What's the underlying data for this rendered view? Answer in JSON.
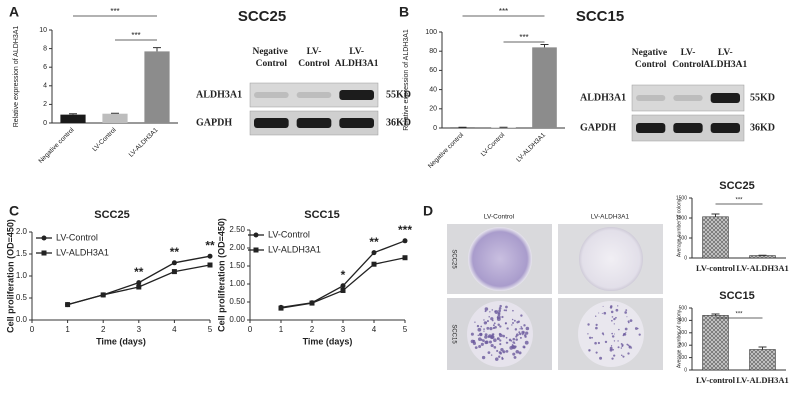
{
  "chart_data": [
    {
      "type": "bar",
      "panel_label": "A",
      "title": "SCC25",
      "y_label": "Relative expression of ALDH3A1",
      "categories": [
        "Negative control",
        "LV-Control",
        "LV-ALDH3A1"
      ],
      "values": [
        0.9,
        1.0,
        7.7
      ],
      "errors": [
        0.1,
        0.05,
        0.4
      ],
      "colors": [
        "#1a1a1a",
        "#bdbdbd",
        "#8c8c8c"
      ],
      "ylim": [
        0,
        10
      ],
      "yticks": [
        0,
        2,
        4,
        6,
        8,
        10
      ],
      "annotations": [
        "***",
        "***"
      ],
      "blot": {
        "columns": [
          "Negative Control",
          "LV-Control",
          "LV-ALDH3A1"
        ],
        "rows": [
          "ALDH3A1",
          "GAPDH"
        ],
        "sizes": [
          "55KD",
          "36KD"
        ]
      }
    },
    {
      "type": "bar",
      "panel_label": "B",
      "title": "SCC15",
      "y_label": "Relative expression of ALDH3A1",
      "categories": [
        "Negative control",
        "LV-Control",
        "LV-ALDH3A1"
      ],
      "values": [
        0.5,
        0.5,
        84
      ],
      "errors": [
        0.3,
        0.3,
        3
      ],
      "colors": [
        "#1a1a1a",
        "#bdbdbd",
        "#8c8c8c"
      ],
      "ylim": [
        0,
        100
      ],
      "yticks": [
        0,
        20,
        40,
        60,
        80,
        100
      ],
      "annotations": [
        "***",
        "***"
      ],
      "blot": {
        "columns": [
          "Negative Control",
          "LV-Control",
          "LV-ALDH3A1"
        ],
        "rows": [
          "ALDH3A1",
          "GAPDH"
        ],
        "sizes": [
          "55KD",
          "36KD"
        ]
      }
    },
    {
      "type": "line",
      "panel_label": "C",
      "title": "SCC25",
      "x_label": "Time (days)",
      "y_label": "Cell proliferation (OD=450)",
      "x": [
        1,
        2,
        3,
        4,
        5
      ],
      "xlim": [
        0,
        5
      ],
      "xticks": [
        0,
        1,
        2,
        3,
        4,
        5
      ],
      "ylim": [
        0,
        2
      ],
      "yticks": [
        {
          "value": 0,
          "label": "0.0"
        },
        0.5,
        {
          "value": 1,
          "label": "1.0"
        },
        1.5,
        {
          "value": 2,
          "label": "2.0"
        }
      ],
      "series": [
        {
          "name": "LV-Control",
          "color": "#222222",
          "values": [
            0.35,
            0.57,
            0.85,
            1.3,
            1.45
          ]
        },
        {
          "name": "LV-ALDH3A1",
          "color": "#222222",
          "values": [
            0.35,
            0.57,
            0.75,
            1.1,
            1.25
          ]
        }
      ],
      "annotations": [
        {
          "x": 3,
          "label": "**"
        },
        {
          "x": 4,
          "label": "**"
        },
        {
          "x": 5,
          "label": "**"
        }
      ]
    },
    {
      "type": "line",
      "title": "SCC15",
      "x_label": "Time (days)",
      "y_label": "Cell proliferation (OD=450)",
      "x": [
        1,
        2,
        3,
        4,
        5
      ],
      "xlim": [
        0,
        5
      ],
      "xticks": [
        0,
        1,
        2,
        3,
        4,
        5
      ],
      "ylim": [
        0,
        2.5
      ],
      "yticks": [
        {
          "value": 0,
          "label": "0.00"
        },
        {
          "value": 0.5,
          "label": "0.50"
        },
        {
          "value": 1,
          "label": "1.00"
        },
        {
          "value": 1.5,
          "label": "1.50"
        },
        {
          "value": 2,
          "label": "2.00"
        },
        {
          "value": 2.5,
          "label": "2.50"
        }
      ],
      "series": [
        {
          "name": "LV-Control",
          "color": "#222222",
          "values": [
            0.35,
            0.48,
            0.95,
            1.87,
            2.2
          ]
        },
        {
          "name": "LV-ALDH3A1",
          "color": "#222222",
          "values": [
            0.33,
            0.47,
            0.82,
            1.55,
            1.73
          ]
        }
      ],
      "annotations": [
        {
          "x": 3,
          "label": "*"
        },
        {
          "x": 4,
          "label": "**"
        },
        {
          "x": 5,
          "label": "***"
        }
      ]
    },
    {
      "type": "bar",
      "title": "SCC25",
      "y_label": "Average number of colony",
      "categories": [
        "LV-control",
        "LV-ALDH3A1"
      ],
      "values": [
        1030,
        60
      ],
      "errors": [
        70,
        10
      ],
      "colors": [
        "#9e9e9e",
        "#9e9e9e"
      ],
      "pattern": "crosshatch",
      "ylim": [
        0,
        1500
      ],
      "yticks": [
        0,
        500,
        1000,
        1500
      ],
      "annotations": [
        "***"
      ]
    },
    {
      "type": "bar",
      "title": "SCC15",
      "y_label": "Average number of colony",
      "categories": [
        "LV-control",
        "LV-ALDH3A1"
      ],
      "values": [
        440,
        165
      ],
      "errors": [
        12,
        20
      ],
      "colors": [
        "#9e9e9e",
        "#9e9e9e"
      ],
      "pattern": "crosshatch",
      "ylim": [
        0,
        500
      ],
      "yticks": [
        0,
        100,
        200,
        300,
        400,
        500
      ],
      "annotations": [
        "***"
      ]
    }
  ],
  "colony_assay": {
    "panel_label": "D",
    "columns": [
      "LV-Control",
      "LV-ALDH3A1"
    ],
    "rows": [
      "SCC25",
      "SCC15"
    ]
  }
}
